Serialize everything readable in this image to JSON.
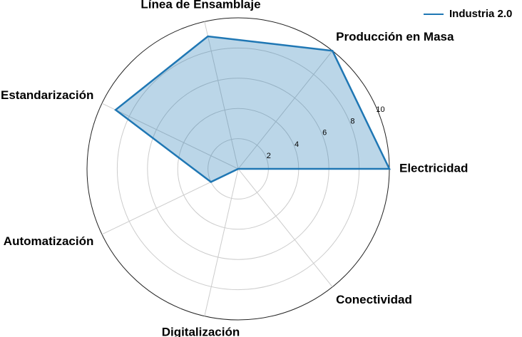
{
  "chart_data": {
    "type": "radar",
    "categories": [
      "Electricidad",
      "Producción en Masa",
      "Línea de Ensamblaje",
      "Estandarización",
      "Automatización",
      "Digitalización",
      "Conectividad"
    ],
    "series": [
      {
        "name": "Industria 2.0",
        "color": "#1f77b4",
        "values": [
          10,
          10,
          9,
          9,
          2,
          0,
          0
        ]
      }
    ],
    "rlim": [
      0,
      10
    ],
    "rticks": [
      2,
      4,
      6,
      8,
      10
    ],
    "grid": true,
    "legend": "upper right"
  }
}
